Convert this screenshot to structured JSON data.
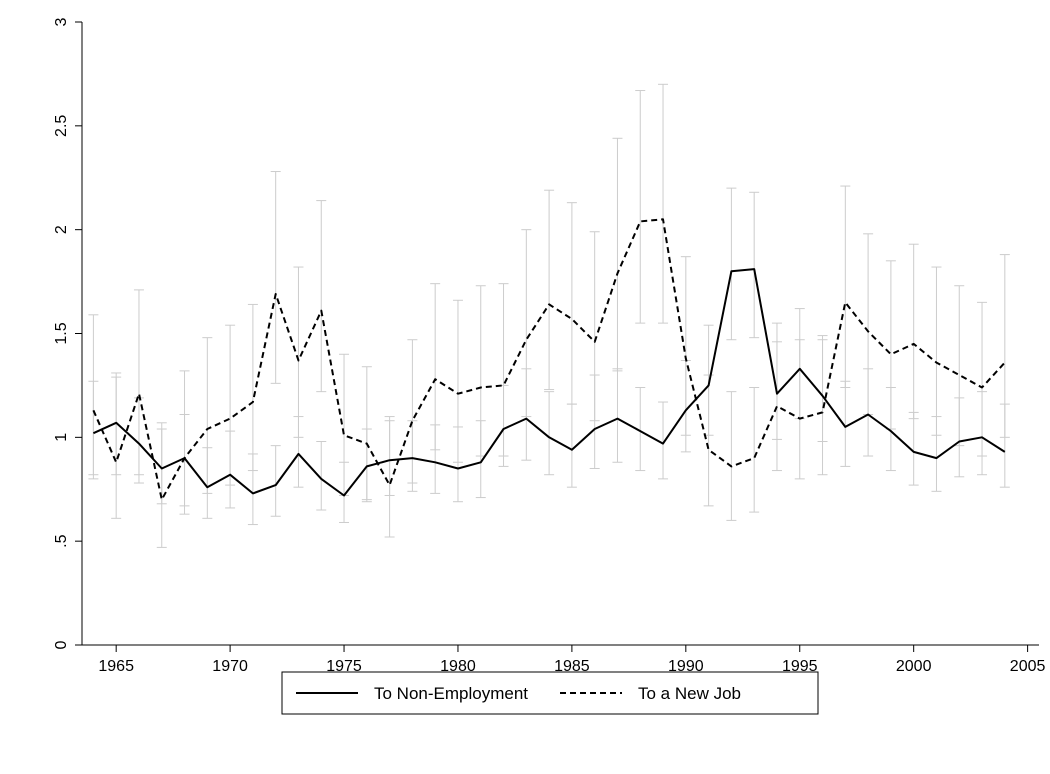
{
  "chart_data": {
    "type": "line",
    "title": "",
    "xlabel": "",
    "ylabel": "",
    "xlim": [
      1963.5,
      2005.5
    ],
    "ylim": [
      0,
      3
    ],
    "xticks": [
      1965,
      1970,
      1975,
      1980,
      1985,
      1990,
      1995,
      2000,
      2005
    ],
    "yticks": [
      0,
      0.5,
      1,
      1.5,
      2,
      2.5,
      3
    ],
    "ytick_labels": [
      "0",
      ".5",
      "1",
      "1.5",
      "2",
      "2.5",
      "3"
    ],
    "grid": false,
    "legend_position": "bottom",
    "x": [
      1964,
      1965,
      1966,
      1967,
      1968,
      1969,
      1970,
      1971,
      1972,
      1973,
      1974,
      1975,
      1976,
      1977,
      1978,
      1979,
      1980,
      1981,
      1982,
      1983,
      1984,
      1985,
      1986,
      1987,
      1988,
      1989,
      1990,
      1991,
      1992,
      1993,
      1994,
      1995,
      1996,
      1997,
      1998,
      1999,
      2000,
      2001,
      2002,
      2003,
      2004
    ],
    "series": [
      {
        "name": "To Non-Employment",
        "style": "solid",
        "color": "#000000",
        "values": [
          1.02,
          1.07,
          0.97,
          0.85,
          0.9,
          0.76,
          0.82,
          0.73,
          0.77,
          0.92,
          0.8,
          0.72,
          0.86,
          0.89,
          0.9,
          0.88,
          0.85,
          0.88,
          1.04,
          1.09,
          1.0,
          0.94,
          1.04,
          1.09,
          1.03,
          0.97,
          1.13,
          1.25,
          1.8,
          1.81,
          1.21,
          1.33,
          1.2,
          1.05,
          1.11,
          1.03,
          0.93,
          0.9,
          0.98,
          1.0,
          0.93
        ],
        "ci_low": [
          0.82,
          0.82,
          0.78,
          0.68,
          0.67,
          0.61,
          0.66,
          0.58,
          0.62,
          0.76,
          0.65,
          0.59,
          0.7,
          0.72,
          0.74,
          0.73,
          0.69,
          0.71,
          0.86,
          0.89,
          0.82,
          0.76,
          0.85,
          0.88,
          0.84,
          0.8,
          0.93,
          1.01,
          1.47,
          1.48,
          0.99,
          1.09,
          0.98,
          0.86,
          0.91,
          0.84,
          0.77,
          0.74,
          0.81,
          0.82,
          0.76
        ],
        "ci_high": [
          1.27,
          1.29,
          1.19,
          1.04,
          1.11,
          0.95,
          1.03,
          0.92,
          0.96,
          1.1,
          0.98,
          0.88,
          1.04,
          1.08,
          1.08,
          1.06,
          1.05,
          1.08,
          1.25,
          1.33,
          1.22,
          1.16,
          1.3,
          1.33,
          1.24,
          1.17,
          1.37,
          1.54,
          2.2,
          2.18,
          1.46,
          1.62,
          1.47,
          1.27,
          1.33,
          1.24,
          1.12,
          1.1,
          1.19,
          1.22,
          1.16
        ]
      },
      {
        "name": "To a New Job",
        "style": "dashed",
        "color": "#000000",
        "values": [
          1.13,
          0.88,
          1.21,
          0.7,
          0.9,
          1.04,
          1.09,
          1.17,
          1.69,
          1.37,
          1.61,
          1.01,
          0.97,
          0.77,
          1.08,
          1.28,
          1.21,
          1.24,
          1.25,
          1.47,
          1.64,
          1.57,
          1.46,
          1.79,
          2.04,
          2.05,
          1.38,
          0.94,
          0.86,
          0.9,
          1.15,
          1.09,
          1.12,
          1.65,
          1.51,
          1.4,
          1.45,
          1.36,
          1.3,
          1.24,
          1.36
        ],
        "ci_low": [
          0.8,
          0.61,
          0.82,
          0.47,
          0.63,
          0.73,
          0.77,
          0.84,
          1.26,
          1.0,
          1.22,
          0.72,
          0.69,
          0.52,
          0.78,
          0.94,
          0.88,
          0.91,
          0.91,
          1.1,
          1.23,
          1.16,
          1.08,
          1.32,
          1.55,
          1.55,
          1.01,
          0.67,
          0.6,
          0.64,
          0.84,
          0.8,
          0.82,
          1.24,
          1.11,
          1.04,
          1.09,
          1.01,
          0.96,
          0.91,
          1.0
        ],
        "ci_high": [
          1.59,
          1.31,
          1.71,
          1.07,
          1.32,
          1.48,
          1.54,
          1.64,
          2.28,
          1.82,
          2.14,
          1.4,
          1.34,
          1.1,
          1.47,
          1.74,
          1.66,
          1.73,
          1.74,
          2.0,
          2.19,
          2.13,
          1.99,
          2.44,
          2.67,
          2.7,
          1.87,
          1.3,
          1.22,
          1.24,
          1.55,
          1.47,
          1.49,
          2.21,
          1.98,
          1.85,
          1.93,
          1.82,
          1.73,
          1.65,
          1.88
        ]
      }
    ],
    "colors": {
      "error_bar": "#cccccc",
      "axis": "#000000",
      "background": "#ffffff"
    }
  }
}
